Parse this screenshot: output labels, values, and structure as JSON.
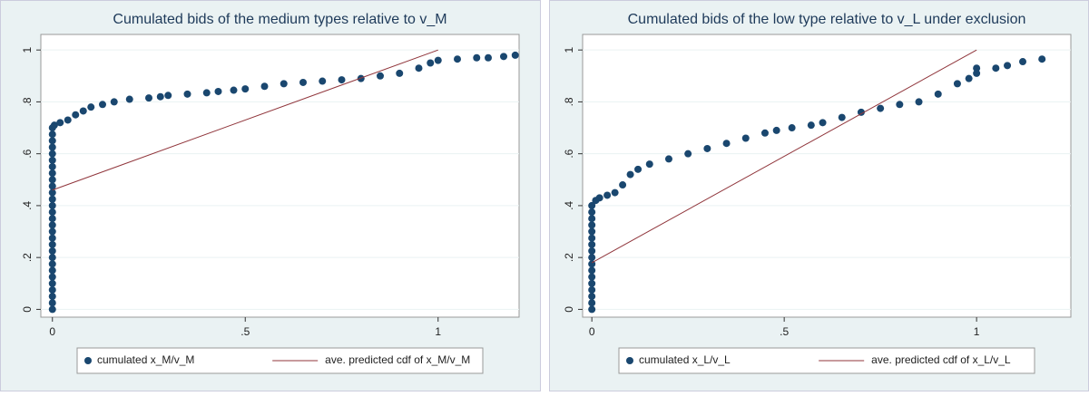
{
  "chart_data": [
    {
      "type": "scatter",
      "title": "Cumulated bids of the medium types relative to v_M",
      "xlim": [
        -0.03,
        1.21
      ],
      "ylim": [
        -0.03,
        1.06
      ],
      "xticks": [
        0,
        {
          "value": 0.5,
          "label": ".5"
        },
        1
      ],
      "yticks": [
        0,
        {
          "value": 0.2,
          "label": ".2"
        },
        {
          "value": 0.4,
          "label": ".4"
        },
        {
          "value": 0.6,
          "label": ".6"
        },
        {
          "value": 0.8,
          "label": ".8"
        },
        1
      ],
      "grid": true,
      "series": [
        {
          "name": "cumulated x_M/v_M",
          "mode": "markers",
          "color": "#1a476f",
          "x": [
            0,
            0,
            0,
            0,
            0,
            0,
            0,
            0,
            0,
            0,
            0,
            0,
            0,
            0,
            0,
            0,
            0,
            0,
            0,
            0,
            0,
            0,
            0,
            0,
            0,
            0,
            0,
            0,
            0,
            0.005,
            0.02,
            0.04,
            0.06,
            0.08,
            0.1,
            0.13,
            0.16,
            0.2,
            0.25,
            0.28,
            0.3,
            0.35,
            0.4,
            0.43,
            0.47,
            0.5,
            0.55,
            0.6,
            0.65,
            0.7,
            0.75,
            0.8,
            0.85,
            0.9,
            0.95,
            0.98,
            1.0,
            1.05,
            1.1,
            1.13,
            1.17,
            1.2
          ],
          "values": [
            0,
            0.025,
            0.05,
            0.075,
            0.1,
            0.125,
            0.15,
            0.175,
            0.2,
            0.225,
            0.25,
            0.275,
            0.3,
            0.325,
            0.35,
            0.375,
            0.4,
            0.425,
            0.45,
            0.475,
            0.5,
            0.525,
            0.55,
            0.575,
            0.6,
            0.625,
            0.65,
            0.675,
            0.7,
            0.71,
            0.72,
            0.73,
            0.75,
            0.765,
            0.78,
            0.79,
            0.8,
            0.81,
            0.815,
            0.82,
            0.825,
            0.83,
            0.835,
            0.84,
            0.845,
            0.85,
            0.86,
            0.87,
            0.875,
            0.88,
            0.885,
            0.89,
            0.9,
            0.91,
            0.93,
            0.95,
            0.96,
            0.965,
            0.97,
            0.97,
            0.975,
            0.98
          ]
        },
        {
          "name": "ave. predicted cdf of x_M/v_M",
          "mode": "line",
          "color": "#90353b",
          "x": [
            0,
            1
          ],
          "values": [
            0.46,
            1
          ]
        }
      ]
    },
    {
      "type": "scatter",
      "title": "Cumulated bids of the low type relative to v_L under exclusion",
      "xlim": [
        -0.024,
        1.245
      ],
      "ylim": [
        -0.03,
        1.06
      ],
      "xticks": [
        0,
        {
          "value": 0.5,
          "label": ".5"
        },
        1
      ],
      "yticks": [
        0,
        {
          "value": 0.2,
          "label": ".2"
        },
        {
          "value": 0.4,
          "label": ".4"
        },
        {
          "value": 0.6,
          "label": ".6"
        },
        {
          "value": 0.8,
          "label": ".8"
        },
        1
      ],
      "grid": true,
      "series": [
        {
          "name": "cumulated x_L/v_L",
          "mode": "markers",
          "color": "#1a476f",
          "x": [
            0,
            0,
            0,
            0,
            0,
            0,
            0,
            0,
            0,
            0,
            0,
            0,
            0,
            0,
            0,
            0,
            0,
            0.01,
            0.02,
            0.04,
            0.06,
            0.08,
            0.1,
            0.12,
            0.15,
            0.2,
            0.25,
            0.3,
            0.35,
            0.4,
            0.45,
            0.48,
            0.52,
            0.57,
            0.6,
            0.65,
            0.7,
            0.75,
            0.8,
            0.85,
            0.9,
            0.95,
            0.98,
            1.0,
            1.0,
            1.05,
            1.08,
            1.12,
            1.17
          ],
          "values": [
            0,
            0.025,
            0.05,
            0.075,
            0.1,
            0.125,
            0.15,
            0.175,
            0.2,
            0.225,
            0.25,
            0.275,
            0.3,
            0.325,
            0.35,
            0.375,
            0.4,
            0.42,
            0.43,
            0.44,
            0.45,
            0.48,
            0.52,
            0.54,
            0.56,
            0.58,
            0.6,
            0.62,
            0.64,
            0.66,
            0.68,
            0.69,
            0.7,
            0.71,
            0.72,
            0.74,
            0.76,
            0.775,
            0.79,
            0.8,
            0.83,
            0.87,
            0.89,
            0.91,
            0.93,
            0.93,
            0.94,
            0.955,
            0.965
          ]
        },
        {
          "name": "ave. predicted cdf of x_L/v_L",
          "mode": "line",
          "color": "#90353b",
          "x": [
            0,
            1
          ],
          "values": [
            0.18,
            1
          ]
        }
      ]
    }
  ]
}
